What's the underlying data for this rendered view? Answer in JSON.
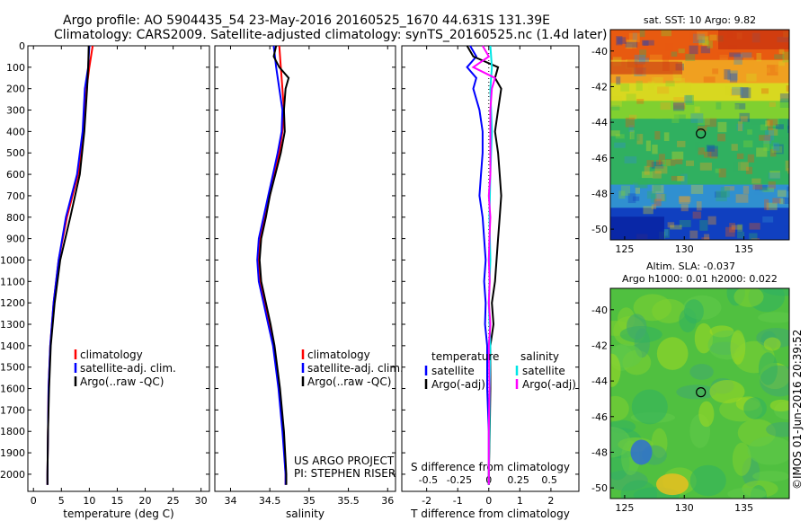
{
  "header": {
    "line1": "Argo profile: AO 5904435_54 23-May-2016 20160525_1670 44.631S 131.39E",
    "line2": "Climatology: CARS2009. Satellite-adjusted climatology: synTS_20160525.nc (1.4d later)"
  },
  "credits": {
    "project": "US ARGO PROJECT",
    "pi": "PI: STEPHEN RISER",
    "imos": "©IMOS 01-Jun-2016 20:39:52"
  },
  "colors": {
    "climatology": "#ff0000",
    "satellite": "#0000ff",
    "argo": "#000000",
    "salinity_satellite": "#00e5e5",
    "salinity_argo": "#ff00ff"
  },
  "chart_data": [
    {
      "id": "temperature",
      "type": "line",
      "xlabel": "temperature (deg C)",
      "xlim": [
        -1,
        31.5
      ],
      "xticks": [
        0,
        5,
        10,
        15,
        20,
        25,
        30
      ],
      "ylim": [
        2080,
        0
      ],
      "yticks": [
        0,
        100,
        200,
        300,
        400,
        500,
        600,
        700,
        800,
        900,
        1000,
        1100,
        1200,
        1300,
        1400,
        1500,
        1600,
        1700,
        1800,
        1900,
        2000
      ],
      "legend": [
        "climatology",
        "satellite-adj. clim.",
        "Argo(..raw -QC)"
      ],
      "series": [
        {
          "name": "climatology",
          "color": "#ff0000",
          "depth": [
            0,
            100,
            200,
            400,
            600,
            800,
            1000,
            1200,
            1400,
            1600,
            1800,
            2000,
            2050
          ],
          "values": [
            10.6,
            10.0,
            9.5,
            9.0,
            8.0,
            6.0,
            4.5,
            3.6,
            3.0,
            2.7,
            2.6,
            2.5,
            2.5
          ]
        },
        {
          "name": "satellite-adj. clim.",
          "color": "#0000ff",
          "depth": [
            0,
            100,
            200,
            400,
            600,
            800,
            1000,
            1200,
            1400,
            1600,
            1800,
            2000,
            2050
          ],
          "values": [
            10.0,
            9.8,
            9.2,
            8.8,
            7.8,
            5.8,
            4.5,
            3.6,
            3.0,
            2.7,
            2.6,
            2.5,
            2.5
          ]
        },
        {
          "name": "Argo(..raw -QC)",
          "color": "#000000",
          "depth": [
            0,
            100,
            200,
            400,
            600,
            800,
            1000,
            1200,
            1400,
            1600,
            1800,
            2000,
            2050
          ],
          "values": [
            9.9,
            9.8,
            9.6,
            9.1,
            8.3,
            6.6,
            4.8,
            3.8,
            3.1,
            2.8,
            2.6,
            2.5,
            2.5
          ]
        }
      ]
    },
    {
      "id": "salinity",
      "type": "line",
      "xlabel": "salinity",
      "xlim": [
        33.8,
        36.1
      ],
      "xticks": [
        34,
        34.5,
        35,
        35.5,
        36
      ],
      "ylim": [
        2080,
        0
      ],
      "legend": [
        "climatology",
        "satellite-adj. clim.",
        "Argo(..raw -QC)"
      ],
      "series": [
        {
          "name": "climatology",
          "color": "#ff0000",
          "depth": [
            0,
            100,
            200,
            300,
            400,
            500,
            600,
            700,
            800,
            900,
            1000,
            1100,
            1200,
            1300,
            1400,
            1600,
            1800,
            2000,
            2050
          ],
          "values": [
            34.62,
            34.64,
            34.66,
            34.68,
            34.66,
            34.62,
            34.56,
            34.5,
            34.44,
            34.38,
            34.36,
            34.38,
            34.44,
            34.5,
            34.55,
            34.62,
            34.67,
            34.7,
            34.7
          ]
        },
        {
          "name": "satellite-adj. clim.",
          "color": "#0000ff",
          "depth": [
            0,
            100,
            200,
            300,
            400,
            500,
            600,
            700,
            800,
            900,
            1000,
            1100,
            1200,
            1300,
            1400,
            1600,
            1800,
            2000,
            2050
          ],
          "values": [
            34.55,
            34.58,
            34.62,
            34.66,
            34.65,
            34.6,
            34.54,
            34.48,
            34.42,
            34.36,
            34.34,
            34.36,
            34.42,
            34.48,
            34.54,
            34.61,
            34.66,
            34.7,
            34.7
          ]
        },
        {
          "name": "Argo(..raw -QC)",
          "color": "#000000",
          "depth": [
            0,
            50,
            100,
            150,
            200,
            300,
            400,
            500,
            600,
            700,
            800,
            900,
            1000,
            1100,
            1200,
            1300,
            1400,
            1600,
            1800,
            2000,
            2050
          ],
          "values": [
            34.58,
            34.55,
            34.62,
            34.74,
            34.7,
            34.68,
            34.69,
            34.64,
            34.57,
            34.5,
            34.45,
            34.39,
            34.37,
            34.39,
            34.45,
            34.51,
            34.56,
            34.63,
            34.68,
            34.71,
            34.71
          ]
        }
      ]
    },
    {
      "id": "difference",
      "type": "line",
      "xlabel": "T difference from climatology",
      "xlim": [
        -2.8,
        2.9
      ],
      "xticks": [
        -2,
        -1,
        0,
        1,
        2
      ],
      "top_label": "S difference from climatology",
      "top_ticks": [
        "-0.5",
        "-0.25",
        "0",
        "0.25",
        "0.5"
      ],
      "top_tick_positions_T": [
        -1.95,
        -0.95,
        0,
        0.95,
        1.95
      ],
      "legend_groups": {
        "temperature": [
          "satellite",
          "Argo(-adj)"
        ],
        "salinity": [
          "satellite",
          "Argo(-adj)"
        ]
      },
      "group_titles": {
        "temperature": "temperature",
        "salinity": "salinity"
      },
      "series": [
        {
          "name": "temperature satellite",
          "color": "#0000ff",
          "depth": [
            0,
            50,
            100,
            150,
            200,
            300,
            400,
            500,
            600,
            700,
            800,
            900,
            1000,
            1100,
            1200,
            1300,
            1400,
            1600,
            1800,
            2000,
            2050
          ],
          "values": [
            -0.6,
            -0.4,
            -0.7,
            -0.4,
            -0.5,
            -0.3,
            -0.2,
            -0.2,
            -0.25,
            -0.3,
            -0.2,
            -0.15,
            -0.1,
            -0.15,
            -0.1,
            -0.12,
            -0.05,
            -0.05,
            0,
            0,
            0
          ]
        },
        {
          "name": "temperature Argo(-adj)",
          "color": "#000000",
          "depth": [
            0,
            50,
            100,
            150,
            200,
            300,
            400,
            500,
            600,
            700,
            800,
            900,
            1000,
            1100,
            1200,
            1300,
            1400,
            1600,
            1800,
            2000,
            2050
          ],
          "values": [
            -0.7,
            -0.5,
            0.3,
            0.2,
            0.4,
            0.3,
            0.2,
            0.3,
            0.35,
            0.4,
            0.35,
            0.3,
            0.25,
            0.2,
            0.1,
            0.15,
            0.05,
            0.05,
            0.03,
            0,
            0
          ]
        },
        {
          "name": "salinity satellite",
          "color": "#00e5e5",
          "depth": [
            0,
            100,
            200,
            400,
            600,
            800,
            1000,
            1200,
            1400,
            1600,
            1800,
            2000,
            2050
          ],
          "values": [
            0.05,
            0.1,
            0.05,
            0.1,
            0.05,
            0.02,
            0.05,
            0.0,
            0.05,
            0.03,
            0.02,
            0.0,
            0.0
          ]
        },
        {
          "name": "salinity Argo(-adj)",
          "color": "#ff00ff",
          "depth": [
            0,
            50,
            100,
            150,
            200,
            300,
            400,
            500,
            600,
            700,
            800,
            900,
            1000,
            1100,
            1200,
            1300,
            1400,
            1600,
            1800,
            2000,
            2050
          ],
          "values": [
            -0.2,
            0.0,
            -0.5,
            0.2,
            0.1,
            0.05,
            0.05,
            0.05,
            0.05,
            0.0,
            0.05,
            0.02,
            0.0,
            0.03,
            0.0,
            0.05,
            0.0,
            0.02,
            0.0,
            0.0,
            0.0
          ]
        }
      ]
    },
    {
      "id": "sst_map",
      "type": "heatmap",
      "title": "sat. SST: 10 Argo: 9.82",
      "xticks": [
        125,
        130,
        135
      ],
      "yticks": [
        -40,
        -42,
        -44,
        -46,
        -48,
        -50
      ],
      "xlim": [
        123.8,
        138.8
      ],
      "ylim": [
        -50.6,
        -38.8
      ],
      "marker": {
        "lon": 131.39,
        "lat": -44.631
      },
      "zones": [
        {
          "lat_from": -38.8,
          "lat_to": -40.5,
          "color": "#e85a10"
        },
        {
          "lat_from": -40.5,
          "lat_to": -41.8,
          "color": "#f0a020"
        },
        {
          "lat_from": -41.8,
          "lat_to": -42.8,
          "color": "#d8d820"
        },
        {
          "lat_from": -42.8,
          "lat_to": -43.8,
          "color": "#80d030"
        },
        {
          "lat_from": -43.8,
          "lat_to": -47.5,
          "color": "#30b060"
        },
        {
          "lat_from": -47.5,
          "lat_to": -48.8,
          "color": "#3090d0"
        },
        {
          "lat_from": -48.8,
          "lat_to": -50.6,
          "color": "#1040c0"
        }
      ]
    },
    {
      "id": "sla_map",
      "type": "heatmap",
      "title_line1": "Altim. SLA: -0.037",
      "title_line2": "Argo h1000: 0.01 h2000: 0.022",
      "xticks": [
        125,
        130,
        135
      ],
      "yticks": [
        -40,
        -42,
        -44,
        -46,
        -48,
        -50
      ],
      "xlim": [
        123.8,
        138.8
      ],
      "ylim": [
        -50.6,
        -38.8
      ],
      "marker": {
        "lon": 131.39,
        "lat": -44.631
      },
      "base_color": "#50c040"
    }
  ]
}
